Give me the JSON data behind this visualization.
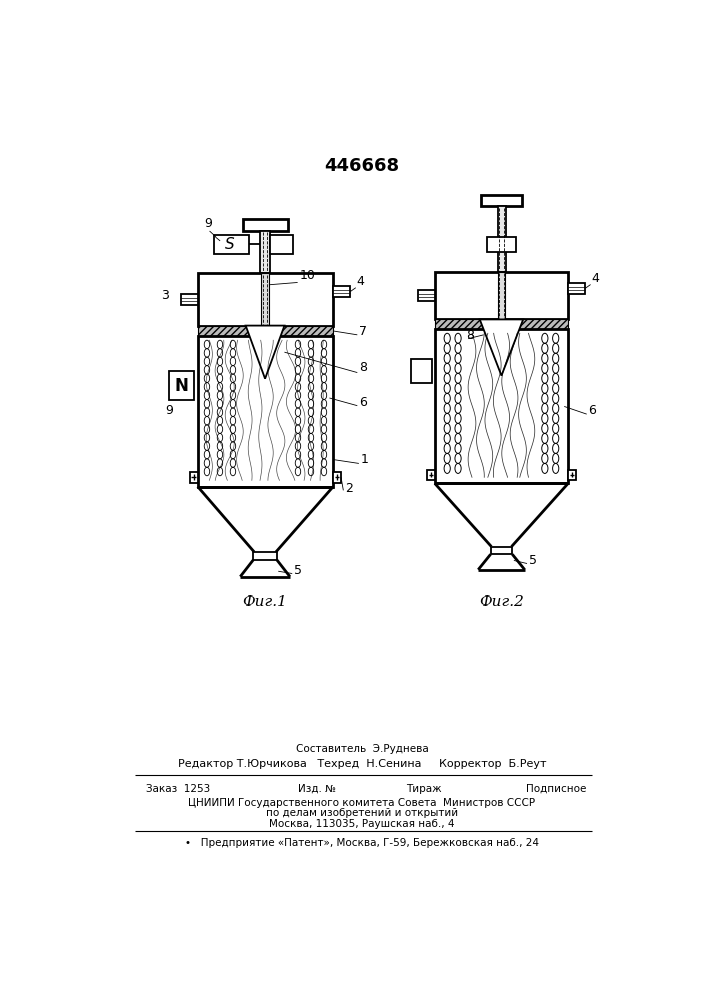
{
  "title": "446668",
  "fig1_label": "Фиг.1",
  "fig2_label": "Фиг.2",
  "bg_color": "#ffffff",
  "line_color": "#000000"
}
